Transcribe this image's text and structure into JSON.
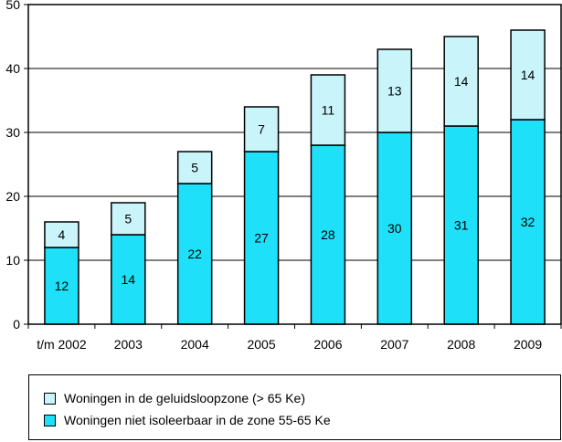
{
  "chart_data": {
    "type": "bar",
    "stacked": true,
    "categories": [
      "t/m 2002",
      "2003",
      "2004",
      "2005",
      "2006",
      "2007",
      "2008",
      "2009"
    ],
    "series": [
      {
        "name": "Woningen niet isoleerbaar in de zone 55-65 Ke",
        "values": [
          12,
          14,
          22,
          27,
          28,
          30,
          31,
          32
        ],
        "color": "#1ee0f8"
      },
      {
        "name": "Woningen in de geluidsloopzone (> 65 Ke)",
        "values": [
          4,
          5,
          5,
          7,
          11,
          13,
          14,
          14
        ],
        "color": "#c8f4fa"
      }
    ],
    "ylim": [
      0,
      50
    ],
    "yticks": [
      0,
      10,
      20,
      30,
      40,
      50
    ],
    "grid": true,
    "legend_position": "bottom"
  },
  "legend": {
    "items": [
      {
        "label": "Woningen in de geluidsloopzone (> 65 Ke)",
        "color": "#c8f4fa"
      },
      {
        "label": "Woningen niet isoleerbaar in de zone 55-65 Ke",
        "color": "#1ee0f8"
      }
    ]
  }
}
